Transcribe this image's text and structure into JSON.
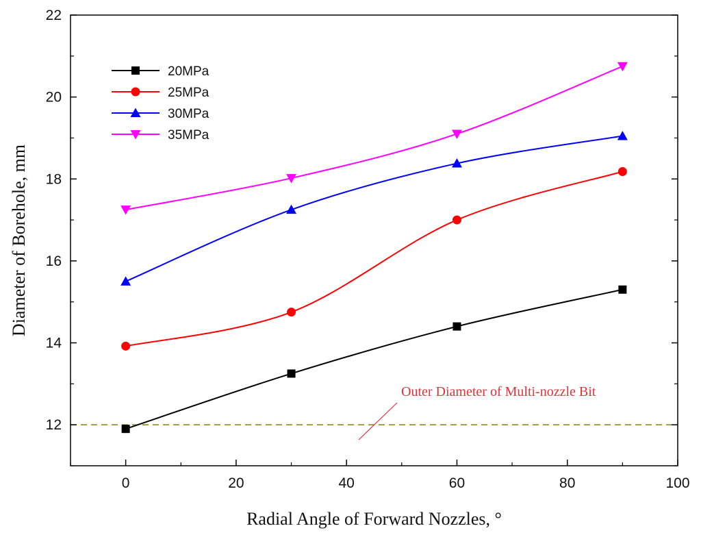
{
  "chart_data": {
    "type": "line",
    "title": "",
    "xlabel": "Radial Angle of Forward Nozzles, °",
    "ylabel": "Diameter of Borehole, mm",
    "xlim": [
      -10,
      100
    ],
    "ylim": [
      11,
      22
    ],
    "x_ticks": [
      "0",
      "20",
      "40",
      "60",
      "80",
      "100"
    ],
    "y_ticks": [
      "12",
      "14",
      "16",
      "18",
      "20",
      "22"
    ],
    "x": [
      0,
      30,
      60,
      90
    ],
    "series": [
      {
        "name": "20MPa",
        "color": "#000000",
        "marker": "square",
        "values": [
          11.9,
          13.25,
          14.4,
          15.3
        ]
      },
      {
        "name": "25MPa",
        "color": "#ff0000",
        "marker": "circle",
        "values": [
          13.92,
          14.75,
          17.0,
          18.18
        ]
      },
      {
        "name": "30MPa",
        "color": "#0000ff",
        "marker": "triangle-up",
        "values": [
          15.5,
          17.25,
          18.38,
          19.05
        ]
      },
      {
        "name": "35MPa",
        "color": "#ff00ff",
        "marker": "triangle-down",
        "values": [
          17.25,
          18.02,
          19.1,
          20.75
        ]
      }
    ],
    "reference_line": {
      "y": 12,
      "color": "#8c8c1e",
      "style": "dashed"
    },
    "annotation": {
      "text": "Outer Diameter of Multi-nozzle Bit",
      "color": "#e8303a"
    },
    "legend_position": "top-left",
    "grid": false
  }
}
